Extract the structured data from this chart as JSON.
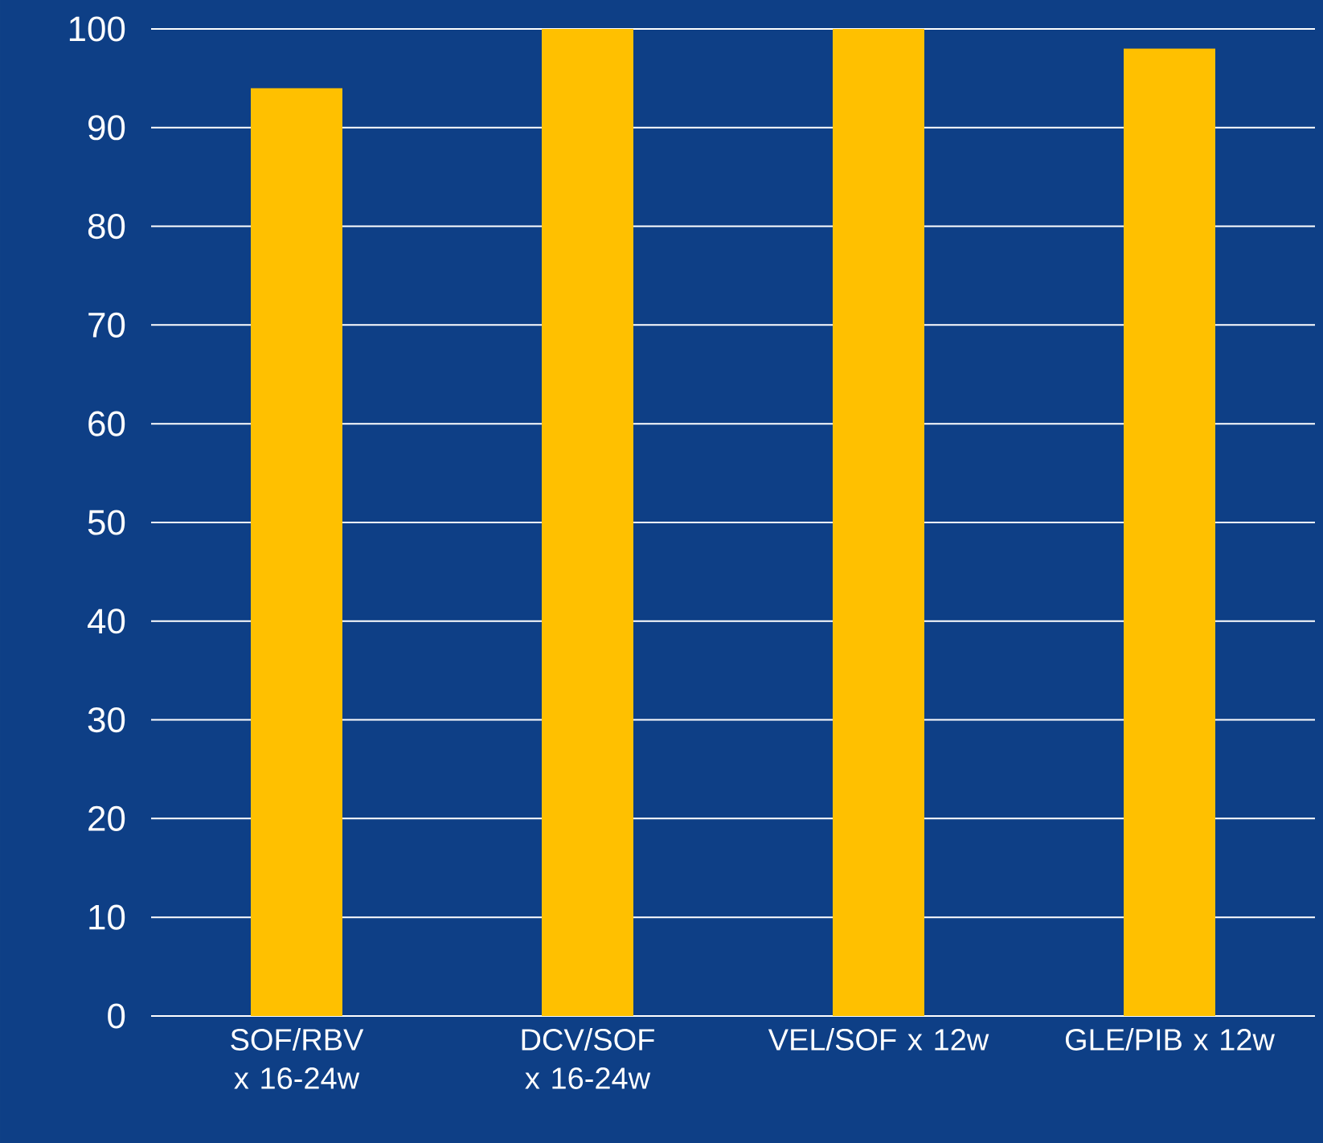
{
  "chart_data": {
    "type": "bar",
    "categories": [
      "SOF/RBV x 16-24w",
      "DCV/SOF x 16-24w",
      "VEL/SOF x 12w",
      "GLE/PIB x 12w"
    ],
    "values": [
      94,
      100,
      100,
      98
    ],
    "color": "#ffc000",
    "ylim": [
      0,
      100
    ],
    "yticks": [
      0,
      10,
      20,
      30,
      40,
      50,
      60,
      70,
      80,
      90,
      100
    ],
    "grid": "y"
  }
}
